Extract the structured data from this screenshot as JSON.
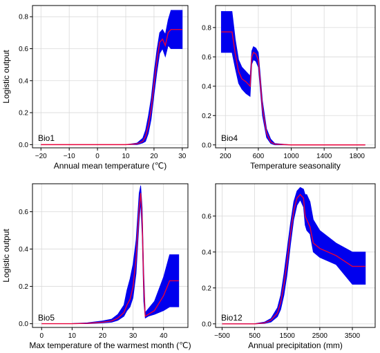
{
  "figure": {
    "ylabel": "Logistic output"
  },
  "chart_data": [
    {
      "type": "line",
      "panel_label": "Bio1",
      "xlabel": "Annual mean temperature (℃)",
      "ylabel": "Logistic output",
      "xlim": [
        -23,
        32
      ],
      "ylim": [
        -0.02,
        0.87
      ],
      "xticks": [
        -20,
        -10,
        0,
        10,
        20,
        30
      ],
      "yticks": [
        0.0,
        0.2,
        0.4,
        0.6,
        0.8
      ],
      "ytick_labels": [
        "0.0",
        "0.2",
        "0.4",
        "0.6",
        "0.8"
      ],
      "grid": true,
      "series": [
        {
          "role": "mean",
          "color": "#e8003a",
          "x": [
            -20,
            -10,
            0,
            10,
            14,
            16,
            17,
            18,
            19,
            20,
            21,
            22,
            23,
            24,
            25,
            26,
            28,
            30
          ],
          "y": [
            0.0,
            0.0,
            0.0,
            0.0,
            0.005,
            0.02,
            0.05,
            0.12,
            0.22,
            0.38,
            0.52,
            0.64,
            0.66,
            0.62,
            0.7,
            0.72,
            0.72,
            0.72
          ]
        },
        {
          "role": "band",
          "color": "#0000ee",
          "x": [
            -20,
            -10,
            0,
            10,
            14,
            16,
            17,
            18,
            19,
            20,
            21,
            22,
            23,
            24,
            25,
            26,
            28,
            30
          ],
          "lower": [
            0.0,
            0.0,
            0.0,
            0.0,
            0.0,
            0.01,
            0.02,
            0.07,
            0.16,
            0.31,
            0.45,
            0.57,
            0.6,
            0.55,
            0.62,
            0.6,
            0.6,
            0.6
          ],
          "upper": [
            0.0,
            0.0,
            0.0,
            0.0,
            0.01,
            0.04,
            0.09,
            0.18,
            0.29,
            0.45,
            0.59,
            0.7,
            0.72,
            0.69,
            0.78,
            0.84,
            0.84,
            0.84
          ]
        }
      ]
    },
    {
      "type": "line",
      "panel_label": "Bio4",
      "xlabel": "Temperature seasonality",
      "ylabel": "",
      "xlim": [
        80,
        2020
      ],
      "ylim": [
        -0.02,
        0.95
      ],
      "xticks": [
        200,
        600,
        1000,
        1400,
        1800
      ],
      "yticks": [
        0.0,
        0.2,
        0.4,
        0.6,
        0.8
      ],
      "ytick_labels": [
        "0.0",
        "0.2",
        "0.4",
        "0.6",
        "0.8"
      ],
      "grid": true,
      "series": [
        {
          "role": "mean",
          "color": "#e8003a",
          "x": [
            150,
            280,
            320,
            360,
            400,
            450,
            500,
            520,
            540,
            570,
            600,
            620,
            650,
            700,
            750,
            800,
            1000,
            1400,
            1900
          ],
          "y": [
            0.77,
            0.77,
            0.62,
            0.5,
            0.45,
            0.43,
            0.4,
            0.6,
            0.63,
            0.62,
            0.58,
            0.45,
            0.25,
            0.08,
            0.02,
            0.005,
            0.0,
            0.0,
            0.0
          ]
        },
        {
          "role": "band",
          "color": "#0000ee",
          "x": [
            150,
            280,
            320,
            360,
            400,
            450,
            500,
            520,
            540,
            570,
            600,
            620,
            650,
            700,
            750,
            800,
            1000,
            1400,
            1900
          ],
          "lower": [
            0.63,
            0.63,
            0.52,
            0.42,
            0.38,
            0.35,
            0.33,
            0.55,
            0.58,
            0.57,
            0.53,
            0.4,
            0.2,
            0.05,
            0.01,
            0.0,
            0.0,
            0.0,
            0.0
          ],
          "upper": [
            0.91,
            0.91,
            0.72,
            0.58,
            0.53,
            0.5,
            0.47,
            0.64,
            0.67,
            0.66,
            0.63,
            0.5,
            0.3,
            0.11,
            0.04,
            0.01,
            0.0,
            0.0,
            0.0
          ]
        }
      ]
    },
    {
      "type": "line",
      "panel_label": "Bio5",
      "xlabel": "Max temperature of the warmest month (℃)",
      "ylabel": "Logistic output",
      "xlim": [
        -3,
        48
      ],
      "ylim": [
        -0.02,
        0.75
      ],
      "xticks": [
        0,
        10,
        20,
        30,
        40
      ],
      "yticks": [
        0.0,
        0.2,
        0.4,
        0.6
      ],
      "ytick_labels": [
        "0.0",
        "0.2",
        "0.4",
        "0.6"
      ],
      "grid": true,
      "series": [
        {
          "role": "mean",
          "color": "#e8003a",
          "x": [
            0,
            10,
            15,
            20,
            23,
            25,
            27,
            28,
            29,
            30,
            31,
            32,
            32.5,
            33,
            33.5,
            34,
            35,
            37,
            40,
            42,
            45
          ],
          "y": [
            0.0,
            0.0,
            0.002,
            0.008,
            0.015,
            0.03,
            0.06,
            0.1,
            0.13,
            0.2,
            0.35,
            0.62,
            0.7,
            0.55,
            0.2,
            0.04,
            0.05,
            0.07,
            0.15,
            0.23,
            0.23
          ]
        },
        {
          "role": "band",
          "color": "#0000ee",
          "x": [
            0,
            10,
            15,
            20,
            23,
            25,
            27,
            28,
            29,
            30,
            31,
            32,
            32.5,
            33,
            33.5,
            34,
            35,
            37,
            40,
            42,
            45
          ],
          "lower": [
            0.0,
            0.0,
            0.0,
            0.004,
            0.008,
            0.018,
            0.04,
            0.07,
            0.09,
            0.14,
            0.27,
            0.55,
            0.65,
            0.47,
            0.12,
            0.03,
            0.04,
            0.05,
            0.07,
            0.09,
            0.09
          ],
          "upper": [
            0.0,
            0.001,
            0.005,
            0.015,
            0.025,
            0.05,
            0.1,
            0.18,
            0.24,
            0.32,
            0.45,
            0.7,
            0.74,
            0.62,
            0.28,
            0.06,
            0.08,
            0.12,
            0.25,
            0.37,
            0.37
          ]
        }
      ]
    },
    {
      "type": "line",
      "panel_label": "Bio12",
      "xlabel": "Annual precipitation (mm)",
      "ylabel": "",
      "xlim": [
        -700,
        4200
      ],
      "ylim": [
        -0.02,
        0.78
      ],
      "xticks": [
        -500,
        500,
        1500,
        2500,
        3500
      ],
      "yticks": [
        0.0,
        0.2,
        0.4,
        0.6
      ],
      "ytick_labels": [
        "0.0",
        "0.2",
        "0.4",
        "0.6"
      ],
      "grid": true,
      "series": [
        {
          "role": "mean",
          "color": "#e8003a",
          "x": [
            -500,
            500,
            800,
            1000,
            1200,
            1300,
            1400,
            1500,
            1600,
            1700,
            1800,
            1900,
            2000,
            2050,
            2100,
            2200,
            2300,
            2500,
            3000,
            3500,
            3900
          ],
          "y": [
            0.0,
            0.0,
            0.005,
            0.02,
            0.06,
            0.12,
            0.22,
            0.35,
            0.5,
            0.63,
            0.7,
            0.72,
            0.7,
            0.6,
            0.58,
            0.54,
            0.45,
            0.42,
            0.38,
            0.32,
            0.32
          ]
        },
        {
          "role": "band",
          "color": "#0000ee",
          "x": [
            -500,
            500,
            800,
            1000,
            1200,
            1300,
            1400,
            1500,
            1600,
            1700,
            1800,
            1900,
            2000,
            2050,
            2100,
            2200,
            2300,
            2500,
            3000,
            3500,
            3900
          ],
          "lower": [
            0.0,
            0.0,
            0.002,
            0.01,
            0.04,
            0.08,
            0.16,
            0.28,
            0.44,
            0.58,
            0.66,
            0.69,
            0.65,
            0.55,
            0.52,
            0.5,
            0.4,
            0.37,
            0.33,
            0.22,
            0.22
          ],
          "upper": [
            0.0,
            0.001,
            0.01,
            0.03,
            0.09,
            0.16,
            0.28,
            0.42,
            0.56,
            0.68,
            0.74,
            0.76,
            0.75,
            0.72,
            0.72,
            0.68,
            0.58,
            0.52,
            0.45,
            0.4,
            0.4
          ]
        }
      ]
    }
  ]
}
